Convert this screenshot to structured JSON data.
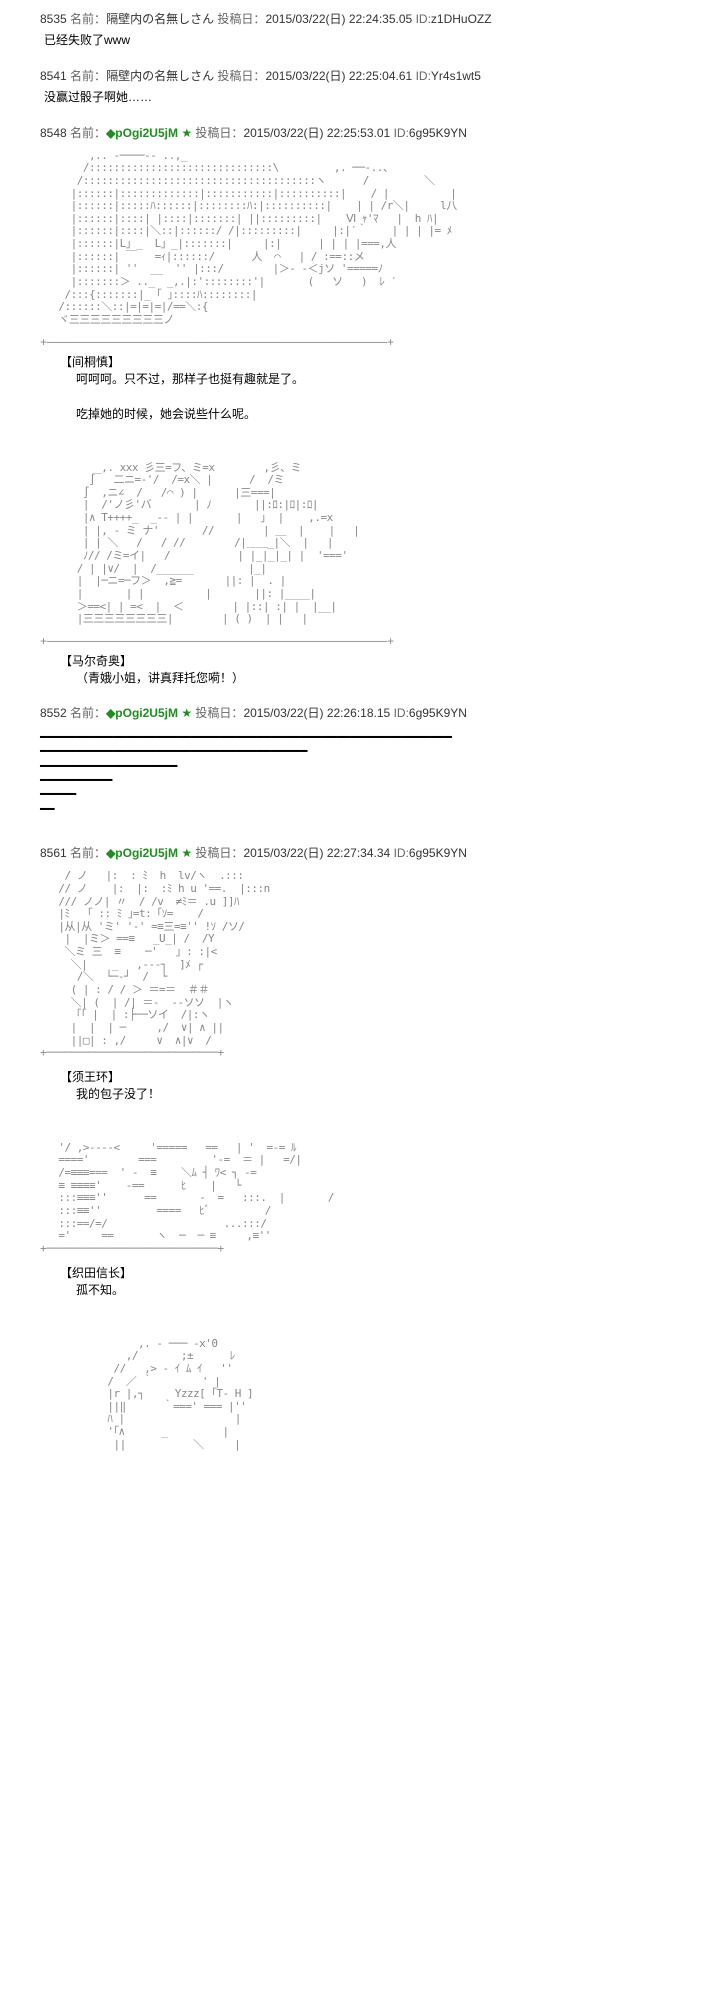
{
  "posts": [
    {
      "number": "8535",
      "name_label": "名前：",
      "name": "隔壁内の名無しさん",
      "date_label": "投稿日：",
      "date": "2015/03/22(日) 22:24:35.05",
      "id_label": "ID:",
      "id": "z1DHuOZZ",
      "body": "已经失败了www"
    },
    {
      "number": "8541",
      "name_label": "名前：",
      "name": "隔壁内の名無しさん",
      "date_label": "投稿日：",
      "date": "2015/03/22(日) 22:25:04.61",
      "id_label": "ID:",
      "id": "Yr4s1wt5",
      "body": "没赢过骰子啊她……"
    },
    {
      "number": "8548",
      "name_label": "名前：",
      "trip": "◆pOgi2U5jM",
      "star": "★",
      "date_label": "投稿日：",
      "date": "2015/03/22(日) 22:25:53.01",
      "id_label": "ID:",
      "id": "6g95K9YN",
      "dialogue1_label": "【间桐慎】",
      "dialogue1_line1": "呵呵呵。只不过，那样子也挺有趣就是了。",
      "dialogue1_line2": "吃掉她的时候，她会说些什么呢。",
      "dialogue2_label": "【马尔奇奥】",
      "dialogue2_line1": "（青娥小姐，讲真拜托您嗬！）"
    },
    {
      "number": "8552",
      "name_label": "名前：",
      "trip": "◆pOgi2U5jM",
      "star": "★",
      "date_label": "投稿日：",
      "date": "2015/03/22(日) 22:26:18.15",
      "id_label": "ID:",
      "id": "6g95K9YN"
    },
    {
      "number": "8561",
      "name_label": "名前：",
      "trip": "◆pOgi2U5jM",
      "star": "★",
      "date_label": "投稿日：",
      "date": "2015/03/22(日) 22:27:34.34",
      "id_label": "ID:",
      "id": "6g95K9YN",
      "dialogue1_label": "【须王环】",
      "dialogue1_line1": "我的包子没了！",
      "dialogue2_label": "【织田信长】",
      "dialogue2_line1": "孤不知。"
    }
  ],
  "aa_art": {
    "art1": "        ,.. -────-- ..,_\n       /::::::::::::::::::::::::::::::\\         ,. ──-..、\n      /::::::::::::::::::::::::::::::::::::::ヽ      /         ＼\n     |::::::|:::::::::::::|:::::::::::|::::::::::|    / |          |\n     |::::::|:::::ﾊ::::::|::::::::ﾊ:|::::::::::|    | | /r＼|     l八\n     |::::::|::::| |::::|:::::::| ||:::::::::|    Ⅵ ｬ'ﾏ   |  h ﾊ|\n     |::::::|::::|＼::|::::::/ /|:::::::::|     |:|′｀    | | | |= ﾒ\n     |::::::|L」_  L」_|:::::::|     |:|      | | | |===,人\n     |::::::| ￣   =ｨ|::::::/      人  ⌒   | / :==::メ\n     |::::::| ''  __  '' |:::/        |＞- -＜jソ '=====ﾉ\n     |:::::::＞ .._  _,.|:'::::::::'|       (   ソ   )  ﾚ ′\n    /:::{:::::::|_ ｢ ｣::::ﾊ::::::::|\n   /::::::＼::|=|=|=|/==＼:{\n   ヾ三三三三三三三三三ノ",
    "art2": "         _,. xxx 彡三=フ、ミ=x        ,彡、ミ\n        ∫   二ニ=-'/  /=x＼ |      /  /ミ\n       ∫  ,ニ∠  /   /⌒ ) |      |三===|\n       |  /'ノ彡'バ       | ﾉ       ||:ﾛ:|ﾛ|:ﾛ|\n       |∧ T++++_  _-- | |       |   ｣  |    ,.=x\n       | |, - ミ ナ'       //        | ＿  |    |   |\n       | | ＼   /   / //        /|＿＿_|＼  |   |\n       ﾉ// /ミ=イ|   /           | |_|_|_| |  '==='\n      / | |∨/  |  /______         |_|\n      |  |─ニ=─フ＞  ,≧=       ||: |  . |\n      |       | |          |       ||: |____|\n      ＞==<| | =<  |  ＜        | |::| :| |  |__|\n      |三三三三三三三三|        | ( )  | |   |",
    "art3": "    / ノ   |:  : ﾐ  h  lv/ヽ  .:::\n   // ノ    |:  |:  :ﾐ h u '==.  |:::n\n   /// ノノ| 〃  / /v  ≠ﾐ＝ .u ]]ﾊ\n   |ﾐ  「 :: ﾐ ｣=t:「ｿ=    /\n   |从|从 'ミ' '-' =≡三=≡'' !ｿ /ソ/\n    |  |ミ＞ ==≡   _U_| /  /Y\n    ＼ミ 三  ≡    ─'   」: :|<\n     ＼|    _   ,---┐  ]ﾒ ┌\n      /＼  └─-┘  /  └\n     ( | : / / ＞ ＝=＝  ＃＃\n     ＼| (  | /| ＝-  --ソソ  |ヽ\n     「｢ |  | :├──ソイ  /|:ヽ\n     |  |  | ─     ,/  ∨| ∧ ||\n     ||□| : ,/     ∨  ∧|∨  /\n+────────────────────────────+",
    "art4": "   '/ ,>----<     '=====   ==   | '  =-= ﾙ\n   ===='        ===         '-=  ＝ |   =/|\n   /=≡≡≡===  ' -  ≡    ＼ﾑ ┤ ﾜ< ┐ -=\n   ≡ ≡≡≡≡'    -==      ﾋ    |   └\n   :::≡≡≡''      ==       -  =   :::.  |       /\n   :::≡≡''         ====   ﾋﾞ         /\n   :::==/=/                   ...:::/\n   ='     ==       ヽ  ─  ─ ≡     ,≡''\n+────────────────────────────+",
    "art5": "                ,. - ─── -x'0\n              ,/       ;±      ﾚ\n            //   ,> - ｲ ﾑ ｲ   ''\n           /  ／ ｀        ' |\n           |r |,┐     Yzzz[ ｢T- H ]\n           ||‖      ｀===' === |''\n           ﾊ |                  |\n           '｢∧      _         |\n            ||           ＼     |"
  },
  "separator_lines": "━━━━━━━━━━━━━━━━━━━━━━━━━━━━━━━━━━━━━━━━━━━━━━━━━━━━━━━━━\n━━━━━━━━━━━━━━━━━━━━━━━━━━━━━━━━━━━━━\n━━━━━━━━━━━━━━━━━━━\n━━━━━━━━━━\n━━━━━\n━━"
}
